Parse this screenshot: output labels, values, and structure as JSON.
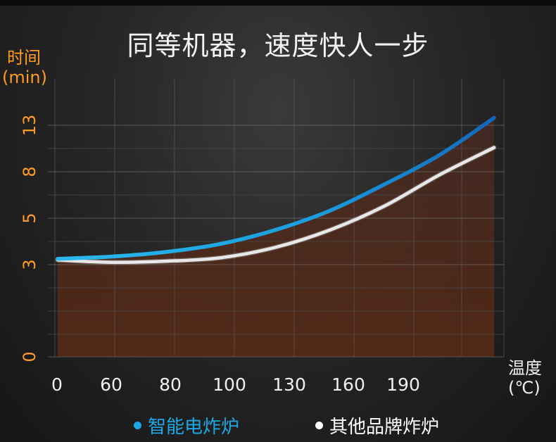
{
  "title": "同等机器，速度快人一步",
  "colors": {
    "y_axis_text": "#ff9c1f",
    "smart_series": "#1aa3e0",
    "other_series": "#e8e8e8",
    "fill_top": "#4a2a22",
    "fill_bottom": "#5a2a14"
  },
  "chart_data": {
    "type": "line",
    "ylabel_line1": "时间",
    "ylabel_line2": "(min)",
    "xlabel_line1": "温度",
    "xlabel_line2": "(℃)",
    "x_ticks": [
      "0",
      "60",
      "80",
      "100",
      "130",
      "160",
      "190"
    ],
    "y_ticks": [
      "0",
      "3",
      "5",
      "8",
      "13"
    ],
    "grid": true,
    "legend_position": "bottom",
    "series": [
      {
        "name": "智能电炸炉",
        "color": "#1aa3e0",
        "points": [
          [
            0,
            3.25
          ],
          [
            1,
            3.35
          ],
          [
            2,
            3.55
          ],
          [
            3,
            3.9
          ],
          [
            4,
            4.5
          ],
          [
            5,
            5.5
          ],
          [
            6,
            7.2
          ],
          [
            7,
            9.8
          ],
          [
            8,
            13.8
          ]
        ]
      },
      {
        "name": "其他品牌炸炉",
        "color": "#e8e8e8",
        "points": [
          [
            0,
            3.2
          ],
          [
            1,
            3.1
          ],
          [
            2,
            3.15
          ],
          [
            3,
            3.3
          ],
          [
            4,
            3.75
          ],
          [
            5,
            4.5
          ],
          [
            6,
            5.8
          ],
          [
            7,
            7.8
          ],
          [
            8,
            10.6
          ]
        ]
      }
    ]
  },
  "legend": {
    "item1": "智能电炸炉",
    "item2": "其他品牌炸炉"
  }
}
